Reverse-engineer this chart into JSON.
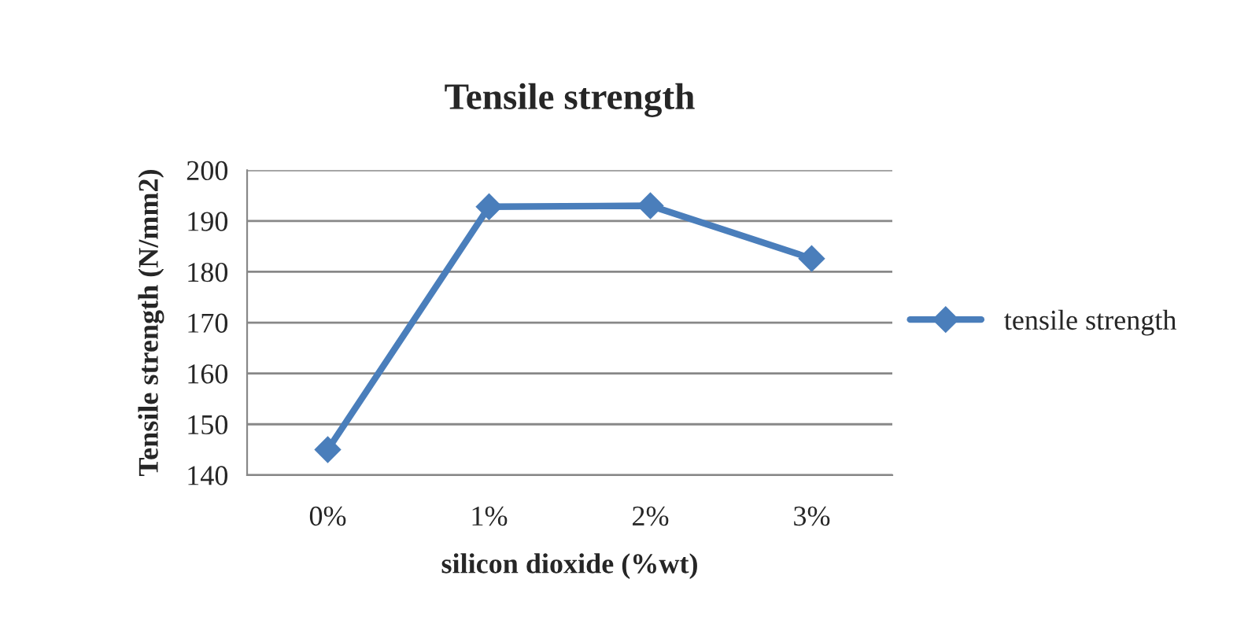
{
  "chart_data": {
    "type": "line",
    "title": "Tensile strength",
    "xlabel": "silicon dioxide (%wt)",
    "ylabel": "Tensile strength (N/mm2)",
    "categories": [
      "0%",
      "1%",
      "2%",
      "3%"
    ],
    "series": [
      {
        "name": "tensile strength",
        "color": "#4a7ebb",
        "values": [
          145,
          192.8,
          193,
          182.6
        ]
      }
    ],
    "ylim": [
      140,
      200
    ],
    "yticks": [
      140,
      150,
      160,
      170,
      180,
      190,
      200
    ],
    "grid": "y",
    "legend": "right",
    "marker": "diamond",
    "line_style": "solid"
  }
}
